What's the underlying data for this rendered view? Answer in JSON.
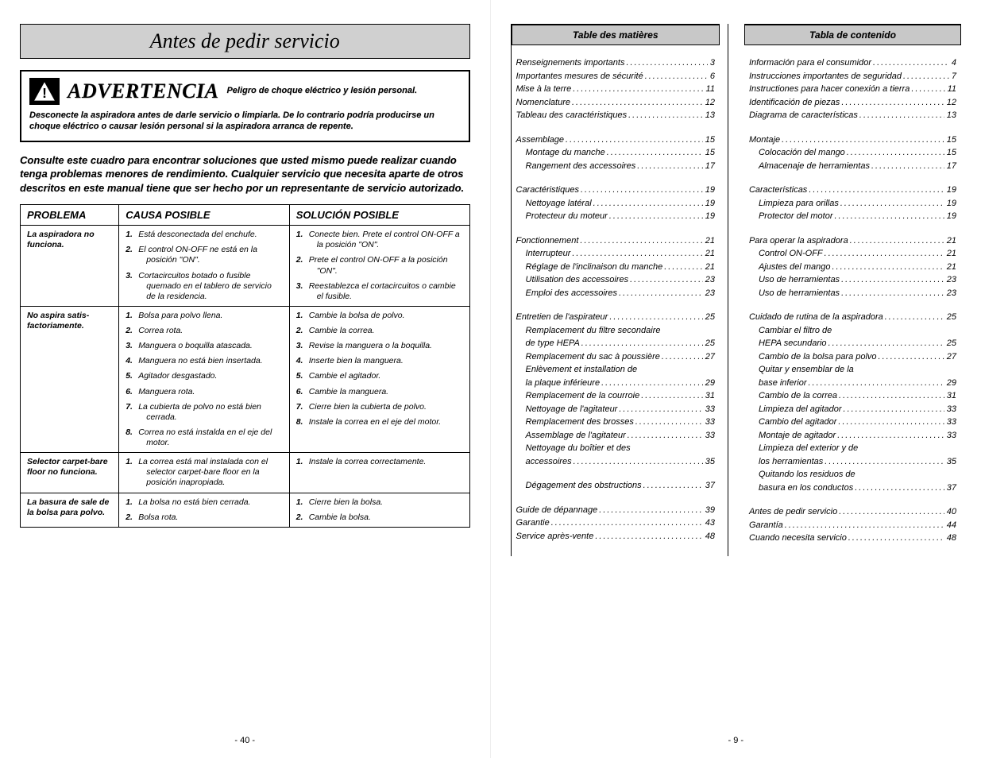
{
  "left": {
    "title": "Antes de pedir servicio",
    "warning": {
      "label": "ADVERTENCIA",
      "sub": "Peligro de choque eléctrico y lesión personal.",
      "body": "Desconecte la aspiradora antes de darle servicio o limpiarla. De lo contrario podría producirse un choque eléctrico o causar lesión personal si la aspiradora arranca de repente."
    },
    "intro": "Consulte este cuadro para encontrar soluciones que usted mismo puede realizar cuando tenga problemas menores de rendimiento. Cualquier servicio que necesita aparte de otros descritos en este manual tiene que ser hecho por un representante de servicio autorizado.",
    "headers": {
      "p": "PROBLEMA",
      "c": "CAUSA POSIBLE",
      "s": "SOLUCIÓN POSIBLE"
    },
    "rows": [
      {
        "problem": "La aspiradora no funciona.",
        "causes": [
          "Está desconectada del enchufe.",
          "El control ON-OFF ne está en la posición \"ON\".",
          "Cortacircuitos botado o fusible quemado en el tablero de servicio de la residencia."
        ],
        "solutions": [
          "Conecte bien. Prete el control ON-OFF a la posición \"ON\".",
          "Prete el control ON-OFF a la posición \"ON\".",
          "Reestablezca el cortacircuitos o cambie el fusible."
        ]
      },
      {
        "problem": "No aspira satis-factoriamente.",
        "causes": [
          "Bolsa para polvo llena.",
          "Correa rota.",
          "Manguera o boquilla atascada.",
          "Manguera no está bien insertada.",
          "Agitador desgastado.",
          "Manguera rota.",
          "La cubierta de polvo no está bien cerrada.",
          "Correa no está instalda en el eje del motor."
        ],
        "solutions": [
          "Cambie la bolsa de polvo.",
          "Cambie la correa.",
          "Revise la manguera o la boquilla.",
          "Inserte bien la manguera.",
          "Cambie el agitador.",
          "Cambie la manguera.",
          "Cierre bien la cubierta de polvo.",
          "Instale la correa en el eje del motor."
        ]
      },
      {
        "problem": "Selector carpet-bare floor no funciona.",
        "causes": [
          "La correa está mal instalada con el selector carpet-bare floor en la posición inapropiada."
        ],
        "solutions": [
          "Instale la correa correctamente."
        ]
      },
      {
        "problem": "La basura de sale de la bolsa para polvo.",
        "causes": [
          "La bolsa no está bien cerrada.",
          "Bolsa rota."
        ],
        "solutions": [
          "Cierre bien la bolsa.",
          "Cambie la bolsa."
        ]
      }
    ],
    "pagenum": "- 40 -"
  },
  "right": {
    "col1": {
      "title": "Table des matières",
      "blocks": [
        [
          {
            "t": "Renseignements importants",
            "p": "3",
            "i": 0
          },
          {
            "t": "Importantes mesures de sécurité",
            "p": "6",
            "i": 0
          },
          {
            "t": "Mise à la terre",
            "p": "11",
            "i": 0
          },
          {
            "t": "Nomenclature",
            "p": "12",
            "i": 0
          },
          {
            "t": "Tableau des caractéristiques",
            "p": "13",
            "i": 0
          }
        ],
        [
          {
            "t": "Assemblage",
            "p": "15",
            "i": 0
          },
          {
            "t": "Montage du manche",
            "p": "15",
            "i": 1
          },
          {
            "t": "Rangement des accessoires",
            "p": "17",
            "i": 1
          }
        ],
        [
          {
            "t": "Caractéristiques",
            "p": "19",
            "i": 0
          },
          {
            "t": "Nettoyage latéral",
            "p": "19",
            "i": 1
          },
          {
            "t": "Protecteur du moteur",
            "p": "19",
            "i": 1
          }
        ],
        [
          {
            "t": "Fonctionnement",
            "p": "21",
            "i": 0
          },
          {
            "t": "Interrupteur",
            "p": "21",
            "i": 1
          },
          {
            "t": "Réglage de l'inclinaison du manche",
            "p": "21",
            "i": 1
          },
          {
            "t": "Utilisation des accessoires",
            "p": "23",
            "i": 1
          },
          {
            "t": "Emploi des accessoires",
            "p": "23",
            "i": 1
          }
        ],
        [
          {
            "t": "Entretien de l'aspirateur",
            "p": "25",
            "i": 0
          },
          {
            "t": "Remplacement du filtre secondaire",
            "p": "",
            "i": 1
          },
          {
            "t": "de type HEPA",
            "p": "25",
            "i": 1
          },
          {
            "t": "Remplacement du sac à poussière",
            "p": "27",
            "i": 1
          },
          {
            "t": "Enlèvement et installation de",
            "p": "",
            "i": 1
          },
          {
            "t": "la plaque inférieure",
            "p": "29",
            "i": 1
          },
          {
            "t": "Remplacement de la courroie",
            "p": "31",
            "i": 1
          },
          {
            "t": "Nettoyage de l'agitateur",
            "p": "33",
            "i": 1
          },
          {
            "t": "Remplacement des brosses",
            "p": "33",
            "i": 1
          },
          {
            "t": "Assemblage de l'agitateur",
            "p": "33",
            "i": 1
          },
          {
            "t": "Nettoyage du boîtier et des",
            "p": "",
            "i": 1
          },
          {
            "t": "accessoires",
            "p": "35",
            "i": 1
          }
        ],
        [
          {
            "t": "Dégagement des obstructions",
            "p": "37",
            "i": 1
          }
        ],
        [
          {
            "t": "Guide de dépannage",
            "p": "39",
            "i": 0
          },
          {
            "t": "Garantie",
            "p": "43",
            "i": 0
          },
          {
            "t": "Service après-vente",
            "p": "48",
            "i": 0
          }
        ]
      ]
    },
    "col2": {
      "title": "Tabla de contenido",
      "blocks": [
        [
          {
            "t": "Información para el consumidor",
            "p": "4",
            "i": 0
          },
          {
            "t": "Instrucciones importantes de seguridad",
            "p": "7",
            "i": 0
          },
          {
            "t": "Instructiones para hacer conexión a tierra",
            "p": "11",
            "i": 0
          },
          {
            "t": "Identificación de piezas",
            "p": "12",
            "i": 0
          },
          {
            "t": "Diagrama de características",
            "p": "13",
            "i": 0
          }
        ],
        [
          {
            "t": "Montaje",
            "p": "15",
            "i": 0
          },
          {
            "t": "Colocación del mango",
            "p": "15",
            "i": 1
          },
          {
            "t": "Almacenaje de herramientas",
            "p": "17",
            "i": 1
          }
        ],
        [
          {
            "t": "Características",
            "p": "19",
            "i": 0
          },
          {
            "t": "Limpieza para orillas",
            "p": "19",
            "i": 1
          },
          {
            "t": "Protector del motor",
            "p": "19",
            "i": 1
          }
        ],
        [
          {
            "t": "Para operar la aspiradora",
            "p": "21",
            "i": 0
          },
          {
            "t": "Control ON-OFF",
            "p": "21",
            "i": 1
          },
          {
            "t": "Ajustes del mango",
            "p": "21",
            "i": 1
          },
          {
            "t": "Uso de herramientas",
            "p": "23",
            "i": 1
          },
          {
            "t": "Uso de herramientas",
            "p": "23",
            "i": 1
          }
        ],
        [
          {
            "t": "Cuidado de rutina de la aspiradora",
            "p": "25",
            "i": 0
          },
          {
            "t": "Cambiar el filtro de",
            "p": "",
            "i": 1
          },
          {
            "t": "HEPA secundario",
            "p": "25",
            "i": 1
          },
          {
            "t": "Cambio de la bolsa para polvo",
            "p": "27",
            "i": 1
          },
          {
            "t": "Quitar y ensemblar de la",
            "p": "",
            "i": 1
          },
          {
            "t": "base inferior",
            "p": "29",
            "i": 1
          },
          {
            "t": "Cambio de la correa",
            "p": "31",
            "i": 1
          },
          {
            "t": "Limpieza del agitador",
            "p": "33",
            "i": 1
          },
          {
            "t": "Cambio del agitador",
            "p": "33",
            "i": 1
          },
          {
            "t": "Montaje de agitador",
            "p": "33",
            "i": 1
          },
          {
            "t": "Limpieza del exterior y de",
            "p": "",
            "i": 1
          },
          {
            "t": "los herramientas",
            "p": "35",
            "i": 1
          },
          {
            "t": "Quitando los residuos de",
            "p": "",
            "i": 1
          },
          {
            "t": "basura en los conductos",
            "p": "37",
            "i": 1
          }
        ],
        [
          {
            "t": "Antes de pedir servicio",
            "p": "40",
            "i": 0
          },
          {
            "t": "Garantía",
            "p": "44",
            "i": 0
          },
          {
            "t": "Cuando necesita servicio",
            "p": "48",
            "i": 0
          }
        ]
      ]
    },
    "pagenum": "- 9 -"
  }
}
